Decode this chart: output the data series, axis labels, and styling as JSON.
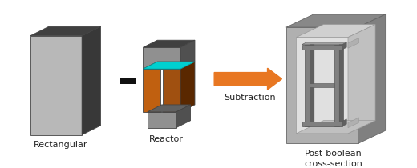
{
  "bg_color": "#ffffff",
  "fig_width": 5.2,
  "fig_height": 2.1,
  "dpi": 100,
  "label_rectangular": "Rectangular",
  "label_reactor": "Reactor",
  "label_subtraction": "Subtraction",
  "label_result": "Post-boolean\ncross-section",
  "label_fontsize": 8,
  "minus_symbol": "-",
  "arrow_color": "#E87722",
  "rect_front": "#b8b8b8",
  "rect_top": "#404040",
  "rect_side": "#383838",
  "reactor_top_front": "#909090",
  "reactor_top_top": "#404040",
  "reactor_top_side": "#505050",
  "reactor_body_front_l": "#c06010",
  "reactor_body_front_r": "#a05010",
  "reactor_body_side": "#5a2800",
  "reactor_body_top": "#c87030",
  "reactor_bottom_front": "#909090",
  "reactor_bottom_top": "#606060",
  "reactor_bottom_side": "#505050",
  "reactor_cyan": "#00d0d0",
  "res_outer_front": "#b0b0b0",
  "res_outer_top": "#888888",
  "res_outer_side": "#808080",
  "res_inner_bg": "#e0e0e0",
  "res_floor": "#c0c0c0",
  "res_wall_inner": "#d0d0d0",
  "res_col_front": "#808080",
  "res_col_side": "#606060",
  "res_col_top": "#a0a0a0",
  "res_step_front": "#909090",
  "res_step_side": "#707070"
}
